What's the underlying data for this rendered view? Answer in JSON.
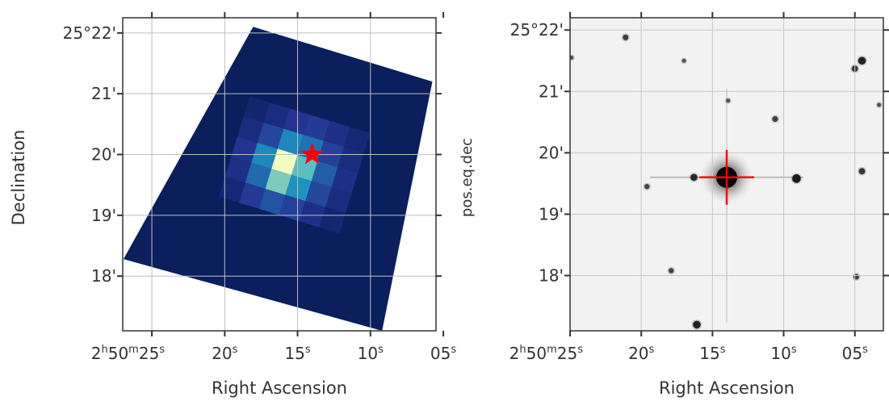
{
  "chart_data": [
    {
      "type": "heatmap",
      "projection": "sky (RA/Dec), image footprint rotated on sky",
      "xlabel": "Right Ascension",
      "ylabel": "Declination",
      "x_tick_labels": [
        "2h50m25s",
        "20s",
        "15s",
        "10s",
        "05s"
      ],
      "y_tick_labels": [
        "25°22'",
        "21'",
        "20'",
        "19'",
        "18'"
      ],
      "x_ticks_seconds_of_ra": [
        25,
        20,
        15,
        10,
        5
      ],
      "y_ticks_arcmin_above_25deg": [
        22,
        21,
        20,
        19,
        18
      ],
      "xlim_seconds_of_ra": [
        27,
        5.5
      ],
      "ylim_arcmin_above_25deg": [
        17.1,
        22.25
      ],
      "grid": true,
      "colormap": "YlGnBu",
      "background_color": "#0a1f5c",
      "grid_color": "#bfbfbf",
      "marker": {
        "shape": "star",
        "color": "#ff0000",
        "ra_seconds": 14.0,
        "dec_arcmin": 20.0
      },
      "footprint_corners_radec": [
        [
          18.05,
          22.1
        ],
        [
          5.75,
          21.2
        ],
        [
          9.2,
          17.1
        ],
        [
          26.95,
          18.28
        ]
      ],
      "pixel_values": [
        [
          0.05,
          0.08,
          0.12,
          0.14,
          0.1,
          0.06
        ],
        [
          0.08,
          0.18,
          0.35,
          0.3,
          0.16,
          0.08
        ],
        [
          0.12,
          0.35,
          0.92,
          0.55,
          0.25,
          0.1
        ],
        [
          0.1,
          0.28,
          0.62,
          0.38,
          0.18,
          0.08
        ],
        [
          0.06,
          0.14,
          0.22,
          0.16,
          0.1,
          0.05
        ]
      ]
    },
    {
      "type": "heatmap",
      "projection": "sky (RA/Dec)",
      "xlabel": "Right Ascension",
      "ylabel": "pos.eq.dec",
      "x_tick_labels": [
        "2h50m25s",
        "20s",
        "15s",
        "10s",
        "05s"
      ],
      "y_tick_labels": [
        "25°22'",
        "21'",
        "20'",
        "19'",
        "18'"
      ],
      "x_ticks_seconds_of_ra": [
        25,
        20,
        15,
        10,
        5
      ],
      "y_ticks_arcmin_above_25deg": [
        22,
        21,
        20,
        19,
        18
      ],
      "xlim_seconds_of_ra": [
        25,
        3
      ],
      "ylim_arcmin_above_25deg": [
        17.1,
        22.2
      ],
      "grid": true,
      "colormap": "gray_r",
      "grid_color": "#c8c8c8",
      "crosshair": {
        "color": "#ff0000",
        "ra_seconds": 14.0,
        "dec_arcmin": 19.6
      },
      "stars": [
        {
          "ra_seconds": 14.0,
          "dec_arcmin": 19.6,
          "brightness": 1.0
        },
        {
          "ra_seconds": 16.3,
          "dec_arcmin": 19.6,
          "brightness": 0.35
        },
        {
          "ra_seconds": 9.1,
          "dec_arcmin": 19.58,
          "brightness": 0.45
        },
        {
          "ra_seconds": 4.5,
          "dec_arcmin": 21.5,
          "brightness": 0.4
        },
        {
          "ra_seconds": 5.0,
          "dec_arcmin": 21.37,
          "brightness": 0.3
        },
        {
          "ra_seconds": 4.5,
          "dec_arcmin": 19.7,
          "brightness": 0.3
        },
        {
          "ra_seconds": 21.1,
          "dec_arcmin": 21.88,
          "brightness": 0.25
        },
        {
          "ra_seconds": 10.6,
          "dec_arcmin": 20.55,
          "brightness": 0.25
        },
        {
          "ra_seconds": 16.1,
          "dec_arcmin": 17.2,
          "brightness": 0.4
        },
        {
          "ra_seconds": 19.6,
          "dec_arcmin": 19.45,
          "brightness": 0.22
        },
        {
          "ra_seconds": 17.9,
          "dec_arcmin": 18.08,
          "brightness": 0.22
        },
        {
          "ra_seconds": 4.9,
          "dec_arcmin": 17.98,
          "brightness": 0.25
        },
        {
          "ra_seconds": 17.0,
          "dec_arcmin": 21.5,
          "brightness": 0.15
        },
        {
          "ra_seconds": 13.9,
          "dec_arcmin": 20.85,
          "brightness": 0.15
        },
        {
          "ra_seconds": 24.9,
          "dec_arcmin": 21.55,
          "brightness": 0.15
        },
        {
          "ra_seconds": 3.3,
          "dec_arcmin": 20.78,
          "brightness": 0.15
        }
      ]
    }
  ]
}
